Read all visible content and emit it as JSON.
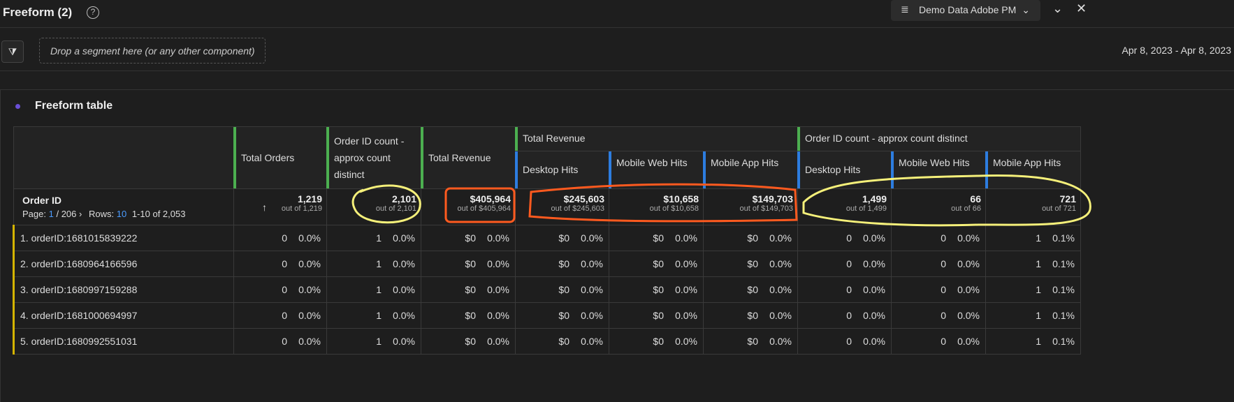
{
  "header": {
    "title": "Freeform (2)",
    "help_icon": "help-icon",
    "datasource": "Demo Data Adobe PM"
  },
  "segment": {
    "placeholder": "Drop a segment here (or any other component)",
    "date_range": "Apr 8, 2023 - Apr 8, 2023"
  },
  "panel": {
    "title": "Freeform table"
  },
  "table": {
    "dimension": "Order ID",
    "page_label": "Page:",
    "page": "1",
    "page_total": "/ 206",
    "rows_label": "Rows:",
    "rows": "10",
    "range": "1-10 of 2,053",
    "groups": [
      "Total Revenue",
      "Order ID count - approx count distinct"
    ],
    "columns": [
      "Total Orders",
      "Order ID count - approx count distinct",
      "Total Revenue",
      "Desktop Hits",
      "Mobile Web Hits",
      "Mobile App Hits",
      "Desktop Hits",
      "Mobile Web Hits",
      "Mobile App Hits"
    ],
    "totals": [
      {
        "v": "1,219",
        "o": "out of 1,219"
      },
      {
        "v": "2,101",
        "o": "out of 2,101"
      },
      {
        "v": "$405,964",
        "o": "out of $405,964"
      },
      {
        "v": "$245,603",
        "o": "out of $245,603"
      },
      {
        "v": "$10,658",
        "o": "out of $10,658"
      },
      {
        "v": "$149,703",
        "o": "out of $149,703"
      },
      {
        "v": "1,499",
        "o": "out of 1,499"
      },
      {
        "v": "66",
        "o": "out of 66"
      },
      {
        "v": "721",
        "o": "out of 721"
      }
    ],
    "rows_data": [
      {
        "label": "1.  orderID:1681015839222",
        "cells": [
          [
            "0",
            "0.0%"
          ],
          [
            "1",
            "0.0%"
          ],
          [
            "$0",
            "0.0%"
          ],
          [
            "$0",
            "0.0%"
          ],
          [
            "$0",
            "0.0%"
          ],
          [
            "$0",
            "0.0%"
          ],
          [
            "0",
            "0.0%"
          ],
          [
            "0",
            "0.0%"
          ],
          [
            "1",
            "0.1%"
          ]
        ]
      },
      {
        "label": "2.  orderID:1680964166596",
        "cells": [
          [
            "0",
            "0.0%"
          ],
          [
            "1",
            "0.0%"
          ],
          [
            "$0",
            "0.0%"
          ],
          [
            "$0",
            "0.0%"
          ],
          [
            "$0",
            "0.0%"
          ],
          [
            "$0",
            "0.0%"
          ],
          [
            "0",
            "0.0%"
          ],
          [
            "0",
            "0.0%"
          ],
          [
            "1",
            "0.1%"
          ]
        ]
      },
      {
        "label": "3.  orderID:1680997159288",
        "cells": [
          [
            "0",
            "0.0%"
          ],
          [
            "1",
            "0.0%"
          ],
          [
            "$0",
            "0.0%"
          ],
          [
            "$0",
            "0.0%"
          ],
          [
            "$0",
            "0.0%"
          ],
          [
            "$0",
            "0.0%"
          ],
          [
            "0",
            "0.0%"
          ],
          [
            "0",
            "0.0%"
          ],
          [
            "1",
            "0.1%"
          ]
        ]
      },
      {
        "label": "4.  orderID:1681000694997",
        "cells": [
          [
            "0",
            "0.0%"
          ],
          [
            "1",
            "0.0%"
          ],
          [
            "$0",
            "0.0%"
          ],
          [
            "$0",
            "0.0%"
          ],
          [
            "$0",
            "0.0%"
          ],
          [
            "$0",
            "0.0%"
          ],
          [
            "0",
            "0.0%"
          ],
          [
            "0",
            "0.0%"
          ],
          [
            "1",
            "0.1%"
          ]
        ]
      },
      {
        "label": "5.  orderID:1680992551031",
        "cells": [
          [
            "0",
            "0.0%"
          ],
          [
            "1",
            "0.0%"
          ],
          [
            "$0",
            "0.0%"
          ],
          [
            "$0",
            "0.0%"
          ],
          [
            "$0",
            "0.0%"
          ],
          [
            "$0",
            "0.0%"
          ],
          [
            "0",
            "0.0%"
          ],
          [
            "0",
            "0.0%"
          ],
          [
            "1",
            "0.1%"
          ]
        ]
      }
    ]
  },
  "colors": {
    "metric": "#4caf50",
    "segment": "#2d7de0",
    "dimension": "#d4b400",
    "annotation_yellow": "#f5f07a",
    "annotation_orange": "#ff5a1f"
  }
}
